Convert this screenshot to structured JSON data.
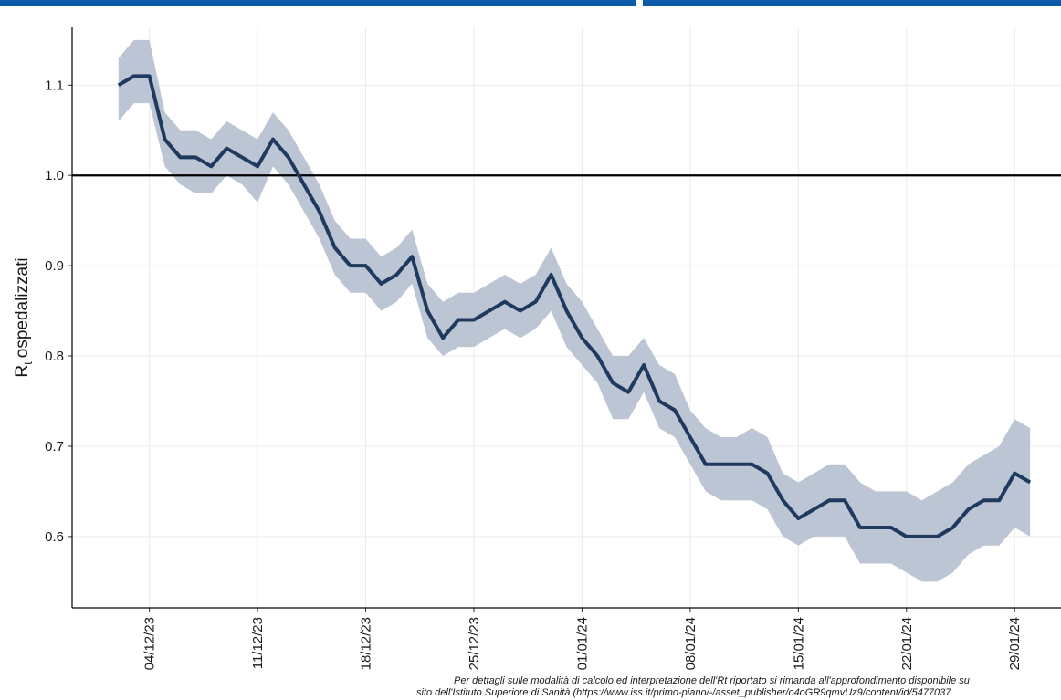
{
  "chart_data": {
    "type": "line",
    "y_label": {
      "base": "R",
      "subscript": "t",
      "text": "ospedalizzati"
    },
    "x": [
      "02/12/23",
      "03/12/23",
      "04/12/23",
      "05/12/23",
      "06/12/23",
      "07/12/23",
      "08/12/23",
      "09/12/23",
      "10/12/23",
      "11/12/23",
      "12/12/23",
      "13/12/23",
      "14/12/23",
      "15/12/23",
      "16/12/23",
      "17/12/23",
      "18/12/23",
      "19/12/23",
      "20/12/23",
      "21/12/23",
      "22/12/23",
      "23/12/23",
      "24/12/23",
      "25/12/23",
      "26/12/23",
      "27/12/23",
      "28/12/23",
      "29/12/23",
      "30/12/23",
      "31/12/23",
      "01/01/24",
      "02/01/24",
      "03/01/24",
      "04/01/24",
      "05/01/24",
      "06/01/24",
      "07/01/24",
      "08/01/24",
      "09/01/24",
      "10/01/24",
      "11/01/24",
      "12/01/24",
      "13/01/24",
      "14/01/24",
      "15/01/24",
      "16/01/24",
      "17/01/24",
      "18/01/24",
      "19/01/24",
      "20/01/24",
      "21/01/24",
      "22/01/24",
      "23/01/24",
      "24/01/24",
      "25/01/24",
      "26/01/24",
      "27/01/24",
      "28/01/24",
      "29/01/24",
      "30/01/24"
    ],
    "values": [
      1.1,
      1.11,
      1.11,
      1.04,
      1.02,
      1.02,
      1.01,
      1.03,
      1.02,
      1.01,
      1.04,
      1.02,
      0.99,
      0.96,
      0.92,
      0.9,
      0.9,
      0.88,
      0.89,
      0.91,
      0.85,
      0.82,
      0.84,
      0.84,
      0.85,
      0.86,
      0.85,
      0.86,
      0.89,
      0.85,
      0.82,
      0.8,
      0.77,
      0.76,
      0.79,
      0.75,
      0.74,
      0.71,
      0.68,
      0.68,
      0.68,
      0.68,
      0.67,
      0.64,
      0.62,
      0.63,
      0.64,
      0.64,
      0.61,
      0.61,
      0.61,
      0.6,
      0.6,
      0.6,
      0.61,
      0.63,
      0.64,
      0.64,
      0.67,
      0.66
    ],
    "upper": [
      1.13,
      1.15,
      1.15,
      1.07,
      1.05,
      1.05,
      1.04,
      1.06,
      1.05,
      1.04,
      1.07,
      1.05,
      1.02,
      0.99,
      0.95,
      0.93,
      0.93,
      0.91,
      0.92,
      0.94,
      0.88,
      0.86,
      0.87,
      0.87,
      0.88,
      0.89,
      0.88,
      0.89,
      0.92,
      0.88,
      0.86,
      0.83,
      0.8,
      0.8,
      0.82,
      0.79,
      0.78,
      0.74,
      0.72,
      0.71,
      0.71,
      0.72,
      0.71,
      0.67,
      0.66,
      0.67,
      0.68,
      0.68,
      0.66,
      0.65,
      0.65,
      0.65,
      0.64,
      0.65,
      0.66,
      0.68,
      0.69,
      0.7,
      0.73,
      0.72
    ],
    "lower": [
      1.06,
      1.08,
      1.08,
      1.01,
      0.99,
      0.98,
      0.98,
      1.0,
      0.99,
      0.97,
      1.01,
      0.99,
      0.96,
      0.93,
      0.89,
      0.87,
      0.87,
      0.85,
      0.86,
      0.88,
      0.82,
      0.8,
      0.81,
      0.81,
      0.82,
      0.83,
      0.82,
      0.83,
      0.85,
      0.81,
      0.79,
      0.77,
      0.73,
      0.73,
      0.76,
      0.72,
      0.71,
      0.68,
      0.65,
      0.64,
      0.64,
      0.64,
      0.63,
      0.6,
      0.59,
      0.6,
      0.6,
      0.6,
      0.57,
      0.57,
      0.57,
      0.56,
      0.55,
      0.55,
      0.56,
      0.58,
      0.59,
      0.59,
      0.61,
      0.6
    ],
    "color": "#1f3a5f",
    "band_color": "#bcc5d3",
    "hline": 1.0,
    "xlim": [
      "29/11/23",
      "01/02/24"
    ],
    "xticks": [
      "04/12/23",
      "11/12/23",
      "18/12/23",
      "25/12/23",
      "01/01/24",
      "08/01/24",
      "15/01/24",
      "22/01/24",
      "29/01/24"
    ],
    "ylim": [
      0.521,
      1.164
    ],
    "yticks": [
      0.6,
      0.7,
      0.8,
      0.9,
      {
        "value": 1,
        "label": "1.0"
      },
      1.1
    ],
    "grid": true,
    "footnote": [
      "Per dettagli sulle modalità di calcolo ed interpretazione dell'Rt riportato si rimanda all'approfondimento disponibile su",
      "sito dell'Istituto Superiore di Sanità (https://www.iss.it/primo-piano/-/asset_publisher/o4oGR9qmvUz9/content/id/5477037"
    ]
  }
}
